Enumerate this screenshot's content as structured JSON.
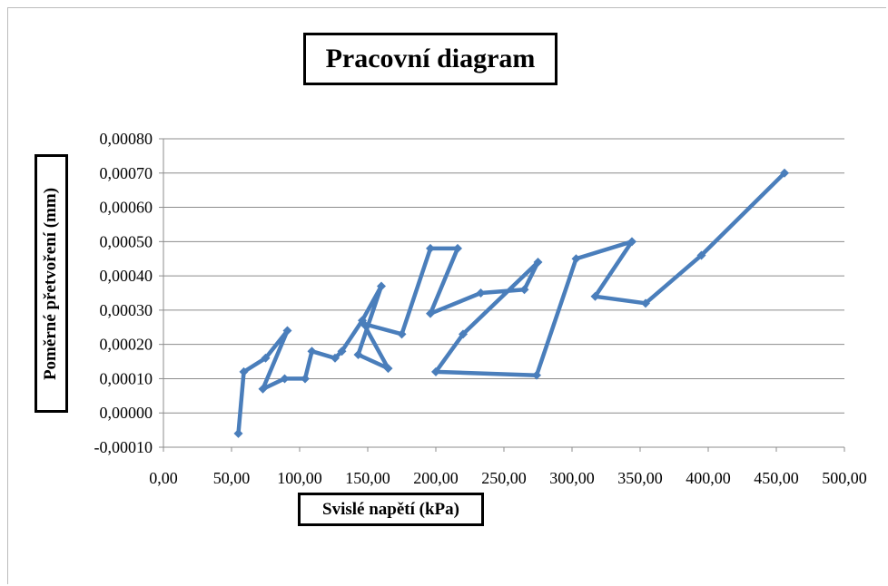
{
  "chart_data": {
    "type": "line",
    "title": "Pracovní diagram",
    "xlabel": "Svislé napětí (kPa)",
    "ylabel": "Poměrné přetvoření (mm)",
    "xlim": [
      0,
      500
    ],
    "ylim": [
      -0.0001,
      0.0008
    ],
    "x_ticks": [
      0,
      50,
      100,
      150,
      200,
      250,
      300,
      350,
      400,
      450,
      500
    ],
    "y_ticks": [
      -0.0001,
      0,
      0.0001,
      0.0002,
      0.0003,
      0.0004,
      0.0005,
      0.0006,
      0.0007,
      0.0008
    ],
    "x_tick_labels": [
      "0,00",
      "50,00",
      "100,00",
      "150,00",
      "200,00",
      "250,00",
      "300,00",
      "350,00",
      "400,00",
      "450,00",
      "500,00"
    ],
    "y_tick_labels": [
      "-0,00010",
      "0,00000",
      "0,00010",
      "0,00020",
      "0,00030",
      "0,00040",
      "0,00050",
      "0,00060",
      "0,00070",
      "0,00080"
    ],
    "grid": "horizontal",
    "legend": "none",
    "series": [
      {
        "color": "#4a7ebb",
        "x": [
          55,
          59,
          75,
          91,
          73,
          89,
          104,
          109,
          126,
          131,
          146,
          160,
          143,
          165,
          147,
          175,
          196,
          216,
          196,
          233,
          265,
          275,
          220,
          200,
          274,
          303,
          344,
          317,
          354,
          395,
          456
        ],
        "y": [
          -6e-05,
          0.00012,
          0.00016,
          0.00024,
          7e-05,
          0.0001,
          0.0001,
          0.00018,
          0.00016,
          0.00018,
          0.00027,
          0.00037,
          0.00017,
          0.00013,
          0.00026,
          0.00023,
          0.00048,
          0.00048,
          0.00029,
          0.00035,
          0.00036,
          0.00044,
          0.00023,
          0.00012,
          0.00011,
          0.00045,
          0.0005,
          0.00034,
          0.00032,
          0.00046,
          0.0007
        ]
      }
    ]
  }
}
